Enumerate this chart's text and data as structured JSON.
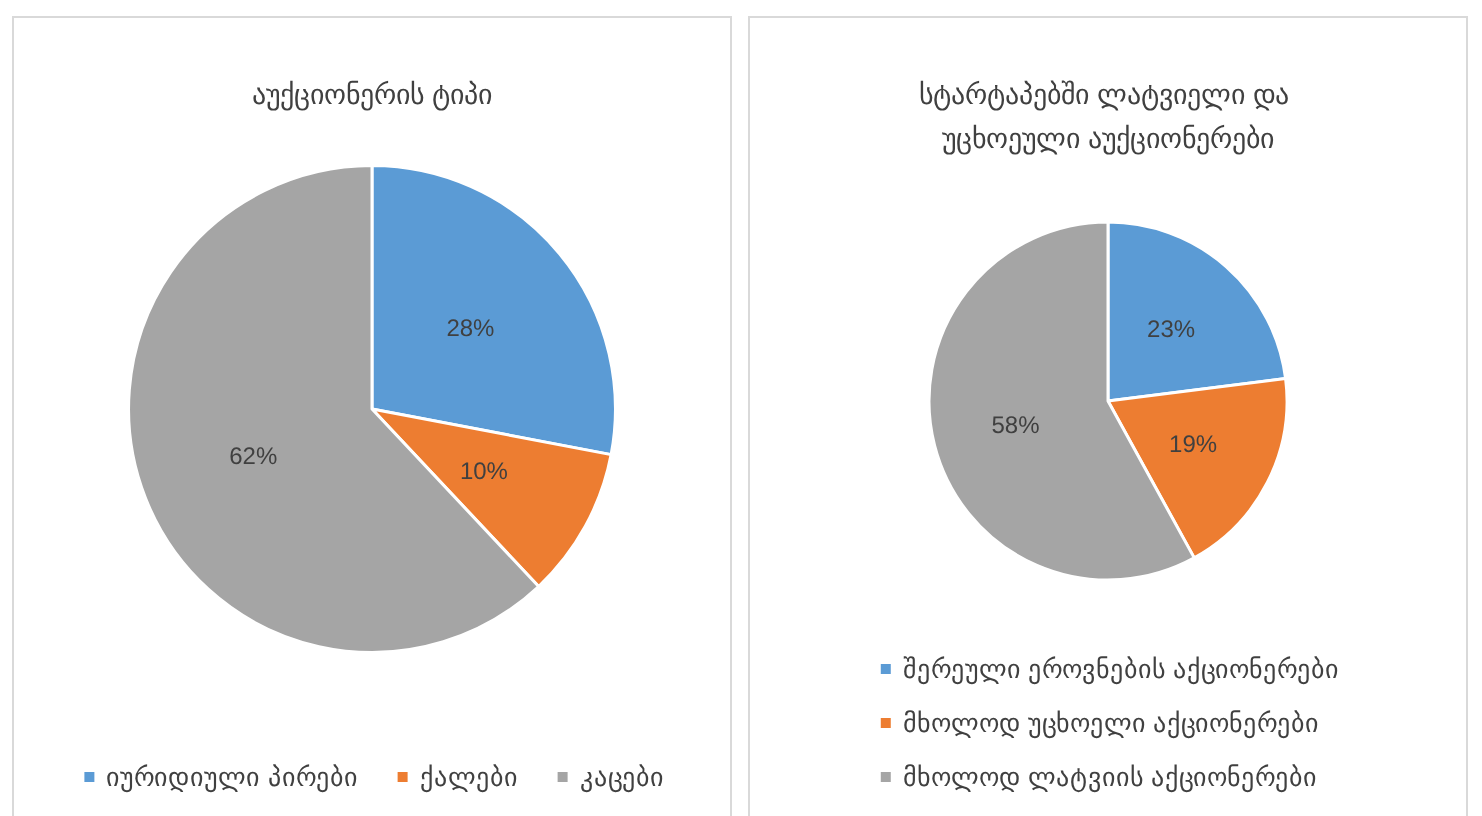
{
  "chart_data": [
    {
      "type": "pie",
      "title": "აუქციონერის ტიპი",
      "categories": [
        "იურიდიული პირები",
        "ქალები",
        "კაცები"
      ],
      "values": [
        28,
        10,
        62
      ],
      "value_labels": [
        "28%",
        "10%",
        "62%"
      ],
      "colors": [
        "#5b9bd5",
        "#ed7d31",
        "#a5a5a5"
      ],
      "legend": "bottom"
    },
    {
      "type": "pie",
      "title": "სტარტაპებში ლატვიელი და უცხოეული აუქციონერები",
      "categories": [
        "შერეული ეროვნების აქციონერები",
        "მხოლოდ უცხოელი აქციონერები",
        "მხოლოდ ლატვიის აქციონერები"
      ],
      "values": [
        23,
        19,
        58
      ],
      "value_labels": [
        "23%",
        "19%",
        "58%"
      ],
      "colors": [
        "#5b9bd5",
        "#ed7d31",
        "#a5a5a5"
      ],
      "legend": "bottom"
    }
  ]
}
